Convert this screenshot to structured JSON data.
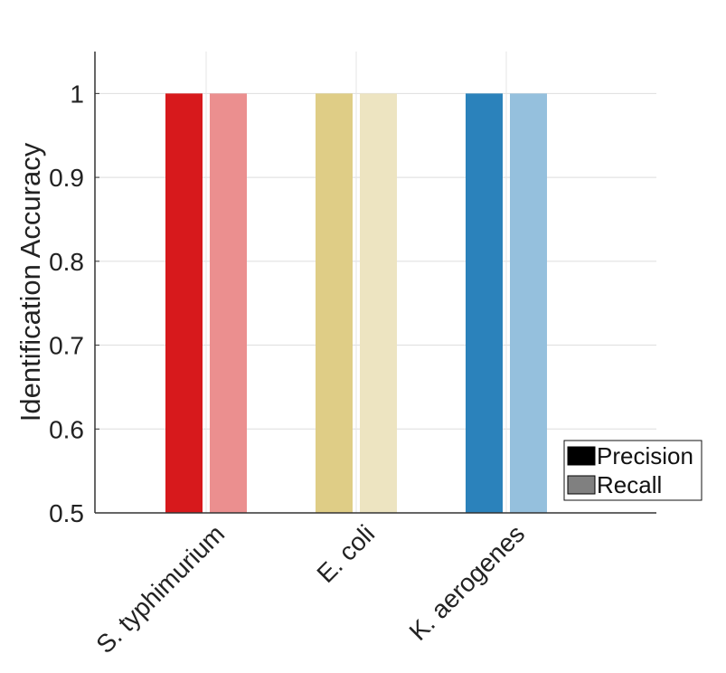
{
  "chart_data": {
    "type": "bar",
    "title": "",
    "xlabel": "",
    "ylabel": "Identification Accuracy",
    "categories": [
      "S. typhimurium",
      "E. coli",
      "K. aerogenes"
    ],
    "series": [
      {
        "name": "Precision",
        "values": [
          1,
          1,
          1
        ],
        "legend_color": "#000000"
      },
      {
        "name": "Recall",
        "values": [
          1,
          1,
          1
        ],
        "legend_color": "#808080"
      }
    ],
    "bar_colors": {
      "Precision": [
        "#d7191c",
        "#dfcd86",
        "#2b82bb"
      ],
      "Recall": [
        "#eb8f8f",
        "#ede4c1",
        "#95c0dd"
      ]
    },
    "ylim": [
      0.5,
      1.05
    ],
    "yticks": [
      0.5,
      0.6,
      0.7,
      0.8,
      0.9,
      1
    ],
    "ytick_labels": [
      "0.5",
      "0.6",
      "0.7",
      "0.8",
      "0.9",
      "1"
    ],
    "grid": true,
    "legend_position": "bottom-right"
  }
}
